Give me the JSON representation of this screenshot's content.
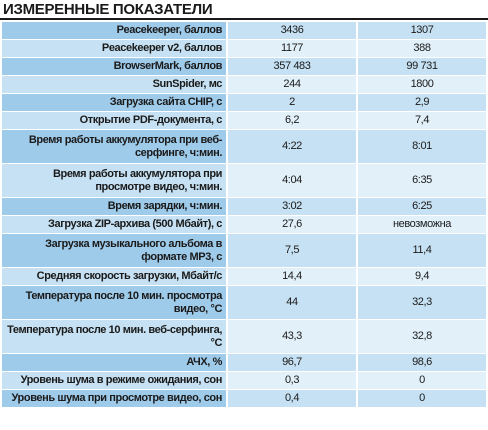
{
  "title": "ИЗМЕРЕННЫЕ ПОКАЗАТЕЛИ",
  "table": {
    "rows": [
      [
        "Peacekeeper, баллов",
        "3436",
        "1307"
      ],
      [
        "Peacekeeper v2, баллов",
        "1177",
        "388"
      ],
      [
        "BrowserMark, баллов",
        "357 483",
        "99 731"
      ],
      [
        "SunSpider, мс",
        "244",
        "1800"
      ],
      [
        "Загрузка сайта CHIP, с",
        "2",
        "2,9"
      ],
      [
        "Открытие PDF-документа, с",
        "6,2",
        "7,4"
      ],
      [
        "Время работы аккумулятора при веб-серфинге, ч:мин.",
        "4:22",
        "8:01"
      ],
      [
        "Время работы аккумулятора при просмотре видео, ч:мин.",
        "4:04",
        "6:35"
      ],
      [
        "Время зарядки, ч:мин.",
        "3:02",
        "6:25"
      ],
      [
        "Загрузка ZIP-архива (500 Мбайт), с",
        "27,6",
        "невозможна"
      ],
      [
        "Загрузка музыкального альбома в формате MP3, с",
        "7,5",
        "11,4"
      ],
      [
        "Средняя скорость загрузки, Мбайт/с",
        "14,4",
        "9,4"
      ],
      [
        "Температура после 10 мин. просмотра видео, °C",
        "44",
        "32,3"
      ],
      [
        "Температура после 10 мин. веб-серфинга, °C",
        "43,3",
        "32,8"
      ],
      [
        "АЧХ, %",
        "96,7",
        "98,6"
      ],
      [
        "Уровень шума в режиме ожидания, сон",
        "0,3",
        "0"
      ],
      [
        "Уровень шума при просмотре видео, сон",
        "0,4",
        "0"
      ]
    ]
  }
}
